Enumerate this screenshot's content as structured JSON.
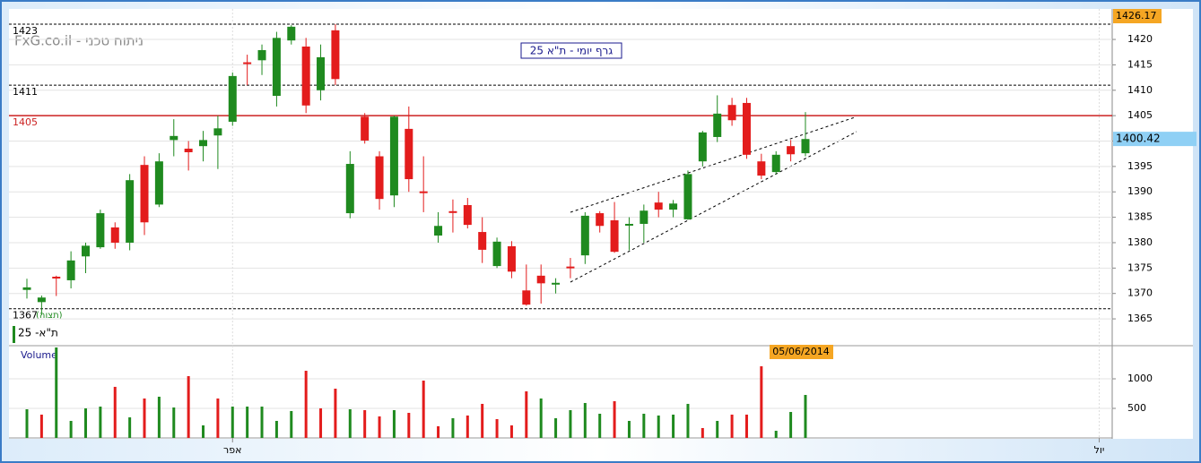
{
  "chart_data": {
    "type": "candlestick",
    "title": "FxG.co.il - ניתוח טכני",
    "subtitle": "גרף יומי - ת\"א 25",
    "series_label": "ת\"א- 25",
    "series_note": "(תצוה)",
    "volume_label": "Volume",
    "crosshair_date": "05/06/2014",
    "up_color": "#1f8a1f",
    "down_color": "#e31c1c",
    "open": [
      1370.7,
      1368.3,
      1373.3,
      1372.6,
      1377.3,
      1379.1,
      1383,
      1380,
      1395.3,
      1387.5,
      1400.2,
      1398.5,
      1399,
      1401.1,
      1403.8,
      1415.5,
      1415.9,
      1408.9,
      1419.8,
      1418.6,
      1410,
      1421.8,
      1385.8,
      1404.8,
      1397,
      1389.3,
      1402.4,
      1390.1,
      1381.4,
      1386.2,
      1387.4,
      1382.1,
      1375.4,
      1379.3,
      1370.6,
      1373.5,
      1372,
      1375.3,
      1377.5,
      1385.8,
      1384.4,
      1383.6,
      1383.7,
      1387.9,
      1386.5,
      1384.6,
      1396,
      1400.8,
      1407.1,
      1407.5,
      1396,
      1393.9,
      1399,
      1397.6
    ],
    "high": [
      1372.9,
      1369.6,
      1373.5,
      1378.3,
      1380,
      1386.5,
      1384,
      1393.5,
      1397,
      1397.6,
      1404.3,
      1400,
      1402,
      1405,
      1413.5,
      1417,
      1419,
      1421.5,
      1422.8,
      1420.3,
      1419,
      1423,
      1398,
      1405.5,
      1398,
      1405,
      1406.8,
      1397,
      1386,
      1388.5,
      1388.8,
      1385,
      1381,
      1380.3,
      1375.7,
      1375.7,
      1373,
      1377,
      1386,
      1386.2,
      1388,
      1385,
      1387.5,
      1390,
      1388.4,
      1394.2,
      1402,
      1409,
      1408.5,
      1408.5,
      1397.5,
      1398,
      1400.2,
      1405.7
    ],
    "low": [
      1369,
      1365.7,
      1369.5,
      1371,
      1374,
      1378.8,
      1378.8,
      1378.5,
      1381.5,
      1387,
      1397,
      1394.2,
      1396,
      1394.5,
      1403,
      1411,
      1413,
      1406.8,
      1419,
      1405.5,
      1408,
      1411,
      1384.8,
      1399.5,
      1386.5,
      1387,
      1390,
      1386,
      1380,
      1382,
      1382.8,
      1376,
      1375,
      1373,
      1367.6,
      1368,
      1370,
      1373,
      1375.8,
      1382,
      1378,
      1378.5,
      1380,
      1385,
      1385,
      1384.5,
      1395,
      1399.8,
      1403,
      1396.5,
      1392.5,
      1393.5,
      1396,
      1397
    ],
    "close": [
      1371.2,
      1369.2,
      1373.2,
      1376.5,
      1379.4,
      1385.8,
      1380,
      1392.3,
      1384,
      1396,
      1401,
      1397.8,
      1400.2,
      1402.5,
      1412.8,
      1415.2,
      1417.9,
      1420.3,
      1422.5,
      1407,
      1416.5,
      1412.2,
      1395.5,
      1400.1,
      1388.6,
      1404.8,
      1392.5,
      1390,
      1383.3,
      1386.1,
      1383.5,
      1378.6,
      1380.2,
      1374.3,
      1367.8,
      1372,
      1372.1,
      1375.1,
      1385.3,
      1383.3,
      1378.2,
      1383.7,
      1386.3,
      1386.5,
      1387.7,
      1393.5,
      1401.7,
      1405.4,
      1404.1,
      1397.3,
      1393.2,
      1397.3,
      1397.4,
      1400.4
    ],
    "volume": [
      485,
      394,
      1530,
      288,
      500,
      530,
      864,
      348,
      667,
      697,
      515,
      1045,
      212,
      667,
      530,
      530,
      530,
      288,
      455,
      1136,
      500,
      833,
      485,
      470,
      364,
      470,
      424,
      970,
      197,
      333,
      379,
      576,
      318,
      212,
      788,
      667,
      333,
      470,
      591,
      409,
      621,
      288,
      409,
      379,
      394,
      576,
      167,
      288,
      394,
      394,
      1212,
      121,
      439,
      727
    ],
    "volume_colors": [
      "#1f8a1f",
      "#e31c1c",
      "#1f8a1f",
      "#1f8a1f",
      "#1f8a1f",
      "#1f8a1f",
      "#e31c1c",
      "#1f8a1f",
      "#e31c1c",
      "#1f8a1f",
      "#1f8a1f",
      "#e31c1c",
      "#1f8a1f",
      "#e31c1c",
      "#1f8a1f",
      "#1f8a1f",
      "#1f8a1f",
      "#1f8a1f",
      "#1f8a1f",
      "#e31c1c",
      "#e31c1c",
      "#e31c1c",
      "#1f8a1f",
      "#e31c1c",
      "#e31c1c",
      "#1f8a1f",
      "#e31c1c",
      "#e31c1c",
      "#e31c1c",
      "#1f8a1f",
      "#e31c1c",
      "#e31c1c",
      "#e31c1c",
      "#e31c1c",
      "#e31c1c",
      "#1f8a1f",
      "#1f8a1f",
      "#1f8a1f",
      "#1f8a1f",
      "#1f8a1f",
      "#e31c1c",
      "#1f8a1f",
      "#1f8a1f",
      "#1f8a1f",
      "#1f8a1f",
      "#1f8a1f",
      "#e31c1c",
      "#1f8a1f",
      "#e31c1c",
      "#e31c1c",
      "#e31c1c",
      "#1f8a1f",
      "#1f8a1f",
      "#1f8a1f"
    ],
    "ylim": [
      1359.9,
      1426.0
    ],
    "yticks": [
      1365,
      1370,
      1375,
      1380,
      1385,
      1390,
      1395,
      1400,
      1405,
      1410,
      1415,
      1420
    ],
    "volume_ylim": [
      0,
      1530
    ],
    "volume_ticks": [
      500,
      1000
    ],
    "xticks": [
      {
        "value": 14,
        "label": "אפר"
      },
      {
        "value": 73,
        "label": "יול"
      }
    ],
    "levels": [
      1423,
      1411,
      1405,
      1367
    ],
    "level_colors": [
      "#000000",
      "#000000",
      "#cc2222",
      "#000000"
    ],
    "high_marker": 1426.17,
    "last_price": 1400.42,
    "grid": true
  }
}
